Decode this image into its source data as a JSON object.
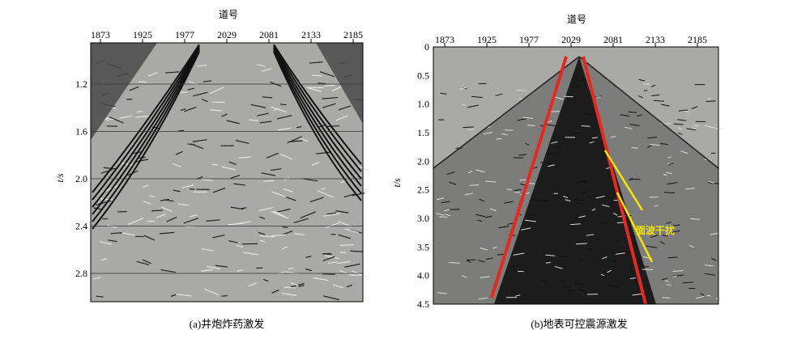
{
  "figure": {
    "panel_a": {
      "x_title": "道号",
      "x_ticks": [
        "1873",
        "1925",
        "1977",
        "2029",
        "2081",
        "2133",
        "2185"
      ],
      "y_title": "t/s",
      "y_ticks": [
        "1.2",
        "1.6",
        "2.0",
        "2.4",
        "2.8"
      ],
      "caption": "(a)井炮炸药激发"
    },
    "panel_b": {
      "x_title": "道号",
      "x_ticks": [
        "1873",
        "1925",
        "1977",
        "2029",
        "2081",
        "2133",
        "2185"
      ],
      "y_title": "t/s",
      "y_ticks": [
        "0",
        "0.5",
        "1.0",
        "1.5",
        "2.0",
        "2.5",
        "3.0",
        "3.5",
        "4.0",
        "4.5"
      ],
      "annotation": "面波干扰",
      "caption": "(b)地表可控震源激发"
    }
  },
  "colors": {
    "seismic_background": "#a9aaa6",
    "red_lines": "#e8281f",
    "yellow_lines": "#f5e600"
  }
}
